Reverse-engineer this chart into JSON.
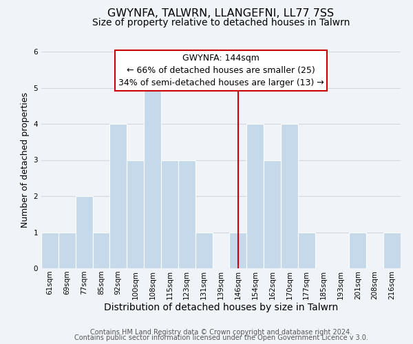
{
  "title": "GWYNFA, TALWRN, LLANGEFNI, LL77 7SS",
  "subtitle": "Size of property relative to detached houses in Talwrn",
  "xlabel": "Distribution of detached houses by size in Talwrn",
  "ylabel": "Number of detached properties",
  "categories": [
    "61sqm",
    "69sqm",
    "77sqm",
    "85sqm",
    "92sqm",
    "100sqm",
    "108sqm",
    "115sqm",
    "123sqm",
    "131sqm",
    "139sqm",
    "146sqm",
    "154sqm",
    "162sqm",
    "170sqm",
    "177sqm",
    "185sqm",
    "193sqm",
    "201sqm",
    "208sqm",
    "216sqm"
  ],
  "values": [
    1,
    1,
    2,
    1,
    4,
    3,
    5,
    3,
    3,
    1,
    0,
    1,
    4,
    3,
    4,
    1,
    0,
    0,
    1,
    0,
    1
  ],
  "bar_color": "#c5d9ea",
  "bar_edge_color": "#c5d9ea",
  "grid_color": "#d0d8e0",
  "bg_color": "#f0f4f8",
  "plot_bg_color": "#f0f4f8",
  "vline_x_index": 11,
  "vline_color": "#cc0000",
  "ylim": [
    0,
    6
  ],
  "yticks": [
    0,
    1,
    2,
    3,
    4,
    5,
    6
  ],
  "annotation_title": "GWYNFA: 144sqm",
  "annotation_line1": "← 66% of detached houses are smaller (25)",
  "annotation_line2": "34% of semi-detached houses are larger (13) →",
  "footer_line1": "Contains HM Land Registry data © Crown copyright and database right 2024.",
  "footer_line2": "Contains public sector information licensed under the Open Government Licence v 3.0.",
  "title_fontsize": 11.5,
  "subtitle_fontsize": 10,
  "xlabel_fontsize": 10,
  "ylabel_fontsize": 9,
  "tick_fontsize": 7.5,
  "footer_fontsize": 7,
  "annotation_fontsize": 9
}
